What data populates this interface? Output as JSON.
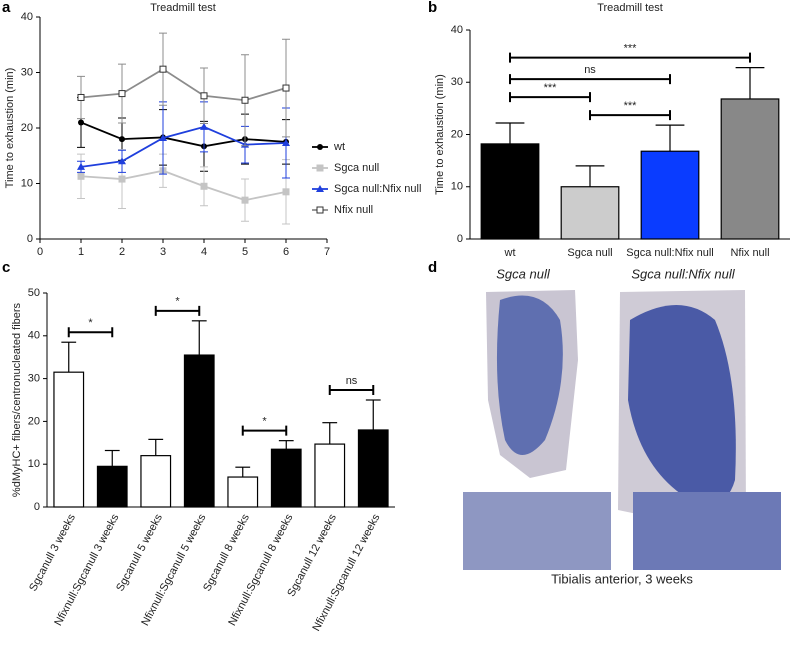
{
  "chart_data": [
    {
      "type": "line",
      "label": "a",
      "title": "Treadmill test",
      "y_label": "Time to exhaustion (min)",
      "x": [
        1,
        2,
        3,
        4,
        5,
        6
      ],
      "xlim": [
        0,
        7
      ],
      "xticks": [
        0,
        1,
        2,
        3,
        4,
        5,
        6,
        7
      ],
      "ylim": [
        0,
        40
      ],
      "yticks": [
        0,
        10,
        20,
        30,
        40
      ],
      "legend": "right",
      "series": [
        {
          "name": "wt",
          "color": "#000000",
          "marker": "circle",
          "values": [
            21,
            18,
            18.3,
            16.7,
            18,
            17.5
          ],
          "errors": [
            4.5,
            3.8,
            5,
            4.5,
            4.5,
            4
          ]
        },
        {
          "name": "Sgca null",
          "color": "#c4c4c4",
          "marker": "square",
          "values": [
            11.3,
            10.8,
            12.3,
            9.5,
            7,
            8.5
          ],
          "errors": [
            4,
            5.3,
            3,
            3.5,
            3.8,
            5.8
          ]
        },
        {
          "name": "Sgca null:Nfix null",
          "color": "#1f3fdd",
          "marker": "triangle",
          "values": [
            13,
            14,
            18.2,
            20.2,
            17,
            17.3
          ],
          "errors": [
            1,
            2,
            6.5,
            4.5,
            3.3,
            6.3
          ]
        },
        {
          "name": "Nfix null",
          "color": "#8c8c8c",
          "marker": "open-square",
          "values": [
            25.5,
            26.2,
            30.6,
            25.8,
            25,
            27.2
          ],
          "errors": [
            3.8,
            5.3,
            6.5,
            5,
            8.2,
            8.8
          ]
        }
      ]
    },
    {
      "type": "bar",
      "label": "b",
      "title": "Treadmill test",
      "y_label": "Time to exhaustion (min)",
      "categories": [
        "wt",
        "Sgca null",
        "Sgca null:Nfix null",
        "Nfix null"
      ],
      "values": [
        18.2,
        10,
        16.8,
        26.8
      ],
      "errors": [
        4,
        4,
        5,
        6
      ],
      "colors": [
        "#000000",
        "#cccccc",
        "#0a3cff",
        "#888888"
      ],
      "ylim": [
        0,
        40
      ],
      "yticks": [
        0,
        10,
        20,
        30,
        40
      ],
      "comparisons": [
        {
          "label": "***",
          "categories": [
            "Sgca null",
            "Sgca null:Nfix null"
          ]
        },
        {
          "label": "***",
          "categories": [
            "wt",
            "Sgca null"
          ]
        },
        {
          "label": "ns",
          "categories": [
            "wt",
            "Sgca null:Nfix null"
          ]
        },
        {
          "label": "***",
          "categories": [
            "wt",
            "Nfix null"
          ]
        }
      ]
    },
    {
      "type": "bar",
      "label": "c",
      "y_label": "%dMyHC+ fibers/centronucleated fibers",
      "categories": [
        "Sgcanull 3 weeks",
        "Nfixnull:Sgcanull 3 weeks",
        "Sgcanull 5 weeks",
        "Nfixnull:Sgcanull 5 weeks",
        "Sgcanull 8 weeks",
        "Nfixnull:Sgcanull 8 weeks",
        "Sgcanull 12 weeks",
        "Nfixnull:Sgcanull 12 weeks"
      ],
      "values": [
        31.5,
        9.5,
        12,
        35.5,
        7,
        13.5,
        14.7,
        18
      ],
      "errors": [
        7,
        3.7,
        3.8,
        8,
        2.3,
        2,
        5,
        7
      ],
      "colors": [
        "#ffffff",
        "#000000",
        "#ffffff",
        "#000000",
        "#ffffff",
        "#000000",
        "#ffffff",
        "#000000"
      ],
      "ylim": [
        0,
        50
      ],
      "yticks": [
        0,
        10,
        20,
        30,
        40,
        50
      ],
      "comparisons": [
        {
          "label": "*",
          "categories": [
            "Sgcanull 3 weeks",
            "Nfixnull:Sgcanull 3 weeks"
          ]
        },
        {
          "label": "*",
          "categories": [
            "Sgcanull 5 weeks",
            "Nfixnull:Sgcanull 5 weeks"
          ]
        },
        {
          "label": "*",
          "categories": [
            "Sgcanull 8 weeks",
            "Nfixnull:Sgcanull 8 weeks"
          ]
        },
        {
          "label": "ns",
          "categories": [
            "Sgcanull 12 weeks",
            "Nfixnull:Sgcanull 12 weeks"
          ]
        }
      ]
    }
  ],
  "panel_d": {
    "label": "d",
    "captions": [
      "Sgca null",
      "Sgca null:Nfix null"
    ],
    "footer": "Tibialis anterior, 3 weeks"
  }
}
